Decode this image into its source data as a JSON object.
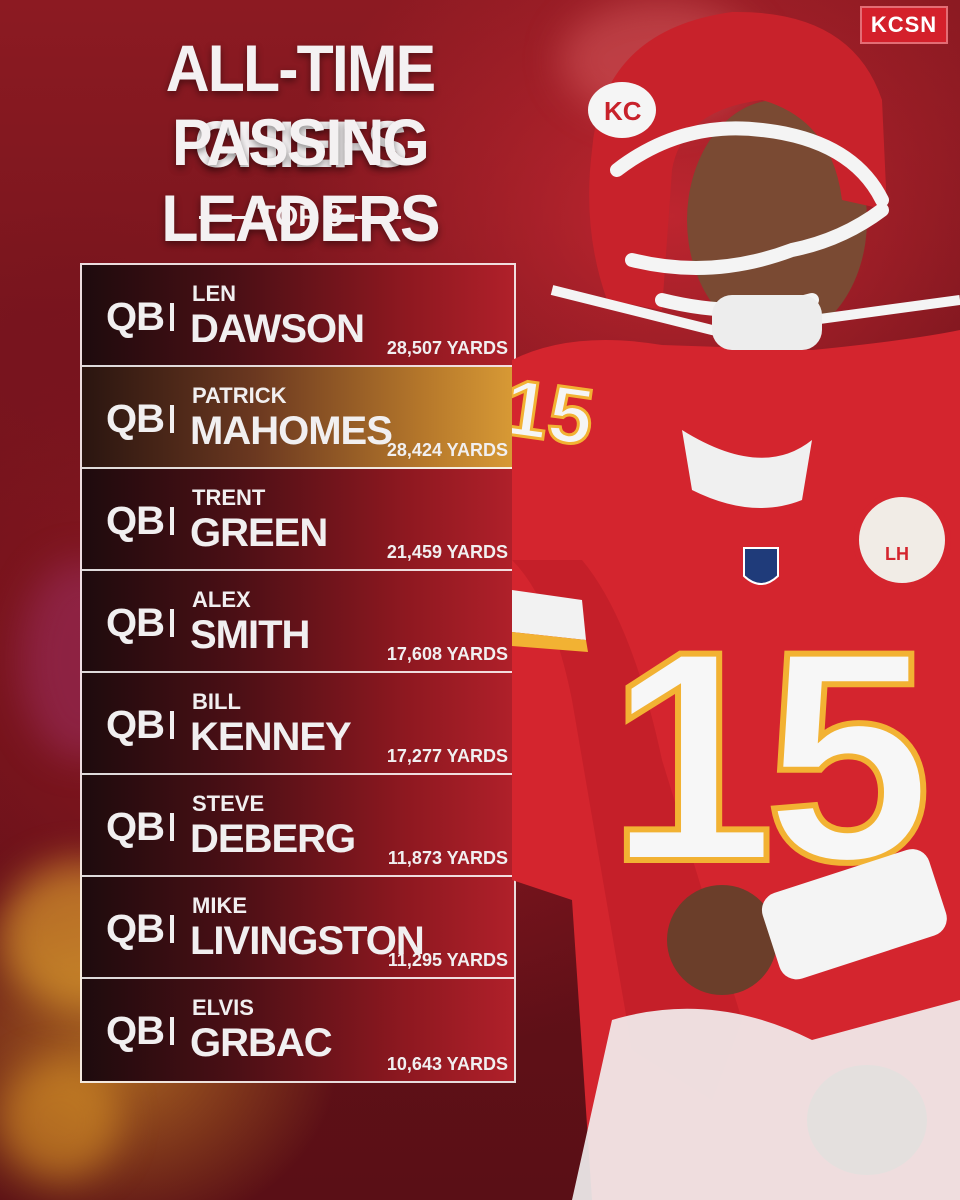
{
  "brand": {
    "logo_text": "KCSN"
  },
  "header": {
    "title_line1": "ALL-TIME CHIEFS",
    "title_line2": "PASSING LEADERS",
    "subtitle": "TOP 8"
  },
  "leaders": [
    {
      "position": "QB",
      "first": "LEN",
      "last": "DAWSON",
      "yards": "28,507 YARDS"
    },
    {
      "position": "QB",
      "first": "PATRICK",
      "last": "MAHOMES",
      "yards": "28,424 YARDS"
    },
    {
      "position": "QB",
      "first": "TRENT",
      "last": "GREEN",
      "yards": "21,459 YARDS"
    },
    {
      "position": "QB",
      "first": "ALEX",
      "last": "SMITH",
      "yards": "17,608 YARDS"
    },
    {
      "position": "QB",
      "first": "BILL",
      "last": "KENNEY",
      "yards": "17,277 YARDS"
    },
    {
      "position": "QB",
      "first": "STEVE",
      "last": "DEBERG",
      "yards": "11,873 YARDS"
    },
    {
      "position": "QB",
      "first": "MIKE",
      "last": "LIVINGSTON",
      "yards": "11,295 YARDS"
    },
    {
      "position": "QB",
      "first": "ELVIS",
      "last": "GRBAC",
      "yards": "10,643 YARDS"
    }
  ],
  "player_image": {
    "description_icon": "football-player-illustration",
    "jersey_number": "15",
    "patch_text": "LH",
    "colors": {
      "jersey": "#d7262f",
      "trim": "#f2b233",
      "helmet": "#c8222b",
      "white": "#f5f5f5"
    }
  }
}
